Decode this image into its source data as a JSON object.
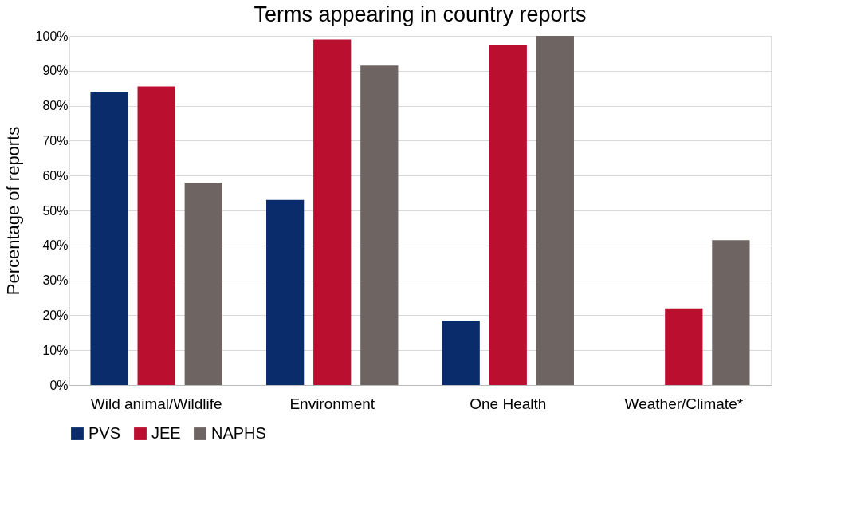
{
  "chart_data": {
    "type": "bar",
    "title": "Terms appearing in country reports",
    "ylabel": "Percentage of reports",
    "categories": [
      "Wild animal/Wildlife",
      "Environment",
      "One Health",
      "Weather/Climate*"
    ],
    "series": [
      {
        "name": "PVS",
        "color": "#0b2c6b",
        "values": [
          84,
          53,
          18.5,
          0
        ]
      },
      {
        "name": "JEE",
        "color": "#bb0f30",
        "values": [
          85.5,
          99,
          97.5,
          22
        ]
      },
      {
        "name": "NAPHS",
        "color": "#6e6462",
        "values": [
          58,
          91.5,
          100,
          41.5
        ]
      }
    ],
    "ylim": [
      0,
      100
    ],
    "yticks": [
      {
        "value": 0,
        "label": "0%"
      },
      {
        "value": 10,
        "label": "10%"
      },
      {
        "value": 20,
        "label": "20%"
      },
      {
        "value": 30,
        "label": "30%"
      },
      {
        "value": 40,
        "label": "40%"
      },
      {
        "value": 50,
        "label": "50%"
      },
      {
        "value": 60,
        "label": "60%"
      },
      {
        "value": 70,
        "label": "70%"
      },
      {
        "value": 80,
        "label": "80%"
      },
      {
        "value": 90,
        "label": "90%"
      },
      {
        "value": 100,
        "label": "100%"
      }
    ],
    "grid": "y",
    "legend": "bottom"
  }
}
